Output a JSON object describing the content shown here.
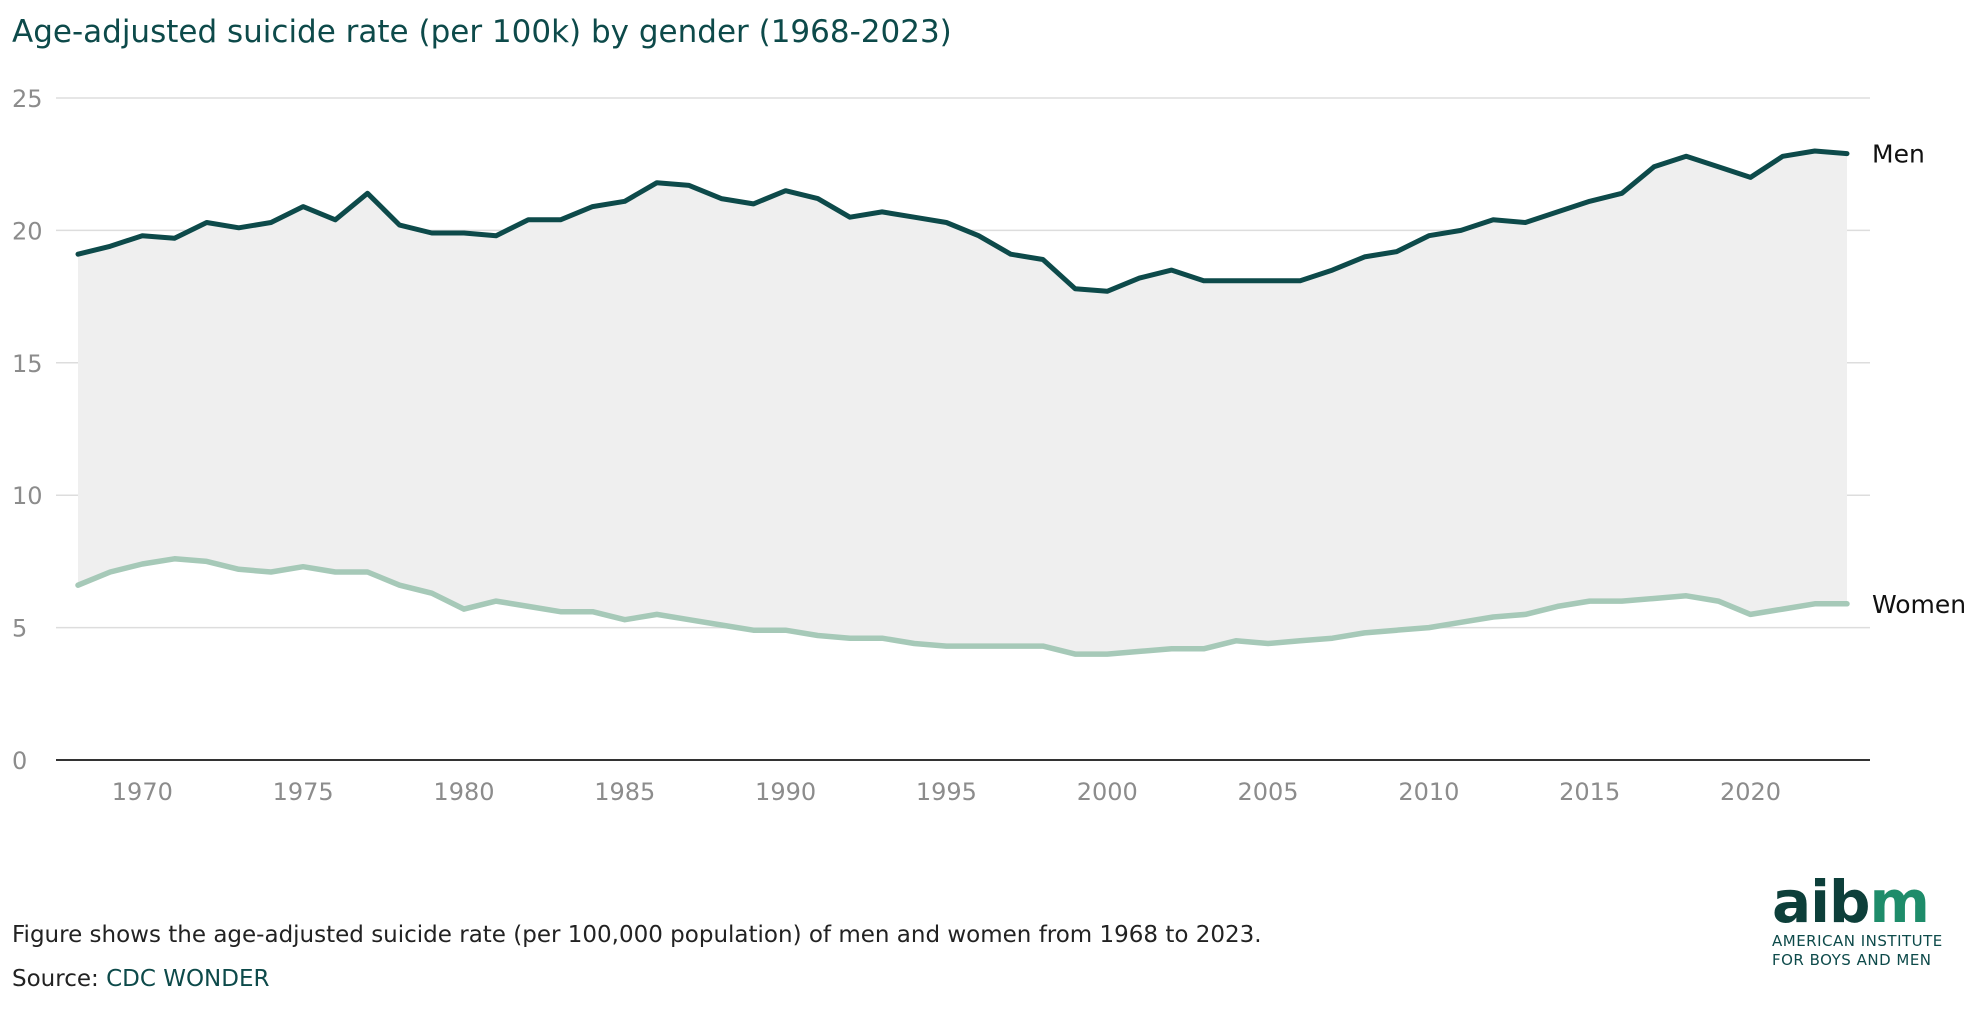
{
  "title": "Age-adjusted suicide rate (per 100k) by gender (1968-2023)",
  "caption": "Figure shows the age-adjusted suicide rate (per 100,000 population) of men and women from 1968 to 2023.",
  "source": {
    "prefix": "Source: ",
    "name": "CDC WONDER"
  },
  "logo": {
    "word_part1": "aib",
    "word_part2": "m",
    "line1": "AMERICAN INSTITUTE",
    "line2": "FOR BOYS AND MEN"
  },
  "colors": {
    "men": "#0d4a4a",
    "women": "#a6c9b8",
    "fill": "#efefef",
    "grid": "#dddddd",
    "axis": "#333333",
    "accent": "#1e8c6a"
  },
  "chart_data": {
    "type": "line",
    "x": [
      1968,
      1969,
      1970,
      1971,
      1972,
      1973,
      1974,
      1975,
      1976,
      1977,
      1978,
      1979,
      1980,
      1981,
      1982,
      1983,
      1984,
      1985,
      1986,
      1987,
      1988,
      1989,
      1990,
      1991,
      1992,
      1993,
      1994,
      1995,
      1996,
      1997,
      1998,
      1999,
      2000,
      2001,
      2002,
      2003,
      2004,
      2005,
      2006,
      2007,
      2008,
      2009,
      2010,
      2011,
      2012,
      2013,
      2014,
      2015,
      2016,
      2017,
      2018,
      2019,
      2020,
      2021,
      2022,
      2023
    ],
    "series": [
      {
        "name": "Men",
        "values": [
          19.1,
          19.4,
          19.8,
          19.7,
          20.3,
          20.1,
          20.3,
          20.9,
          20.4,
          21.4,
          20.2,
          19.9,
          19.9,
          19.8,
          20.4,
          20.4,
          20.9,
          21.1,
          21.8,
          21.7,
          21.2,
          21.0,
          21.5,
          21.2,
          20.5,
          20.7,
          20.5,
          20.3,
          19.8,
          19.1,
          18.9,
          17.8,
          17.7,
          18.2,
          18.5,
          18.1,
          18.1,
          18.1,
          18.1,
          18.5,
          19.0,
          19.2,
          19.8,
          20.0,
          20.4,
          20.3,
          20.7,
          21.1,
          21.4,
          22.4,
          22.8,
          22.4,
          22.0,
          22.8,
          23.0,
          22.9
        ]
      },
      {
        "name": "Women",
        "values": [
          6.6,
          7.1,
          7.4,
          7.6,
          7.5,
          7.2,
          7.1,
          7.3,
          7.1,
          7.1,
          6.6,
          6.3,
          5.7,
          6.0,
          5.8,
          5.6,
          5.6,
          5.3,
          5.5,
          5.3,
          5.1,
          4.9,
          4.9,
          4.7,
          4.6,
          4.6,
          4.4,
          4.3,
          4.3,
          4.3,
          4.3,
          4.0,
          4.0,
          4.1,
          4.2,
          4.2,
          4.5,
          4.4,
          4.5,
          4.6,
          4.8,
          4.9,
          5.0,
          5.2,
          5.4,
          5.5,
          5.8,
          6.0,
          6.0,
          6.1,
          6.2,
          6.0,
          5.5,
          5.7,
          5.9,
          5.9
        ]
      }
    ],
    "y_ticks": [
      "0",
      "5",
      "10",
      "15",
      "20",
      "25"
    ],
    "x_ticks": [
      "1970",
      "1975",
      "1980",
      "1985",
      "1990",
      "1995",
      "2000",
      "2005",
      "2010",
      "2015",
      "2020"
    ],
    "ylim": [
      0,
      25
    ],
    "xlim": [
      1968,
      2023
    ],
    "grid": true,
    "area_between_series": true,
    "labels_at_line_end": true
  }
}
